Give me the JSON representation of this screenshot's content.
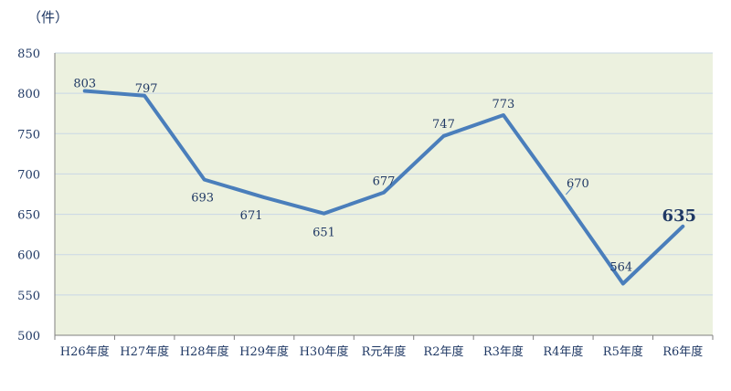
{
  "chart_data": {
    "type": "line",
    "unit_label": "（件）",
    "categories": [
      "H26年度",
      "H27年度",
      "H28年度",
      "H29年度",
      "H30年度",
      "R元年度",
      "R2年度",
      "R3年度",
      "R4年度",
      "R5年度",
      "R6年度"
    ],
    "series": [
      {
        "values": [
          803,
          797,
          693,
          671,
          651,
          677,
          747,
          773,
          670,
          564,
          635
        ]
      }
    ],
    "ylim": [
      500,
      850
    ],
    "yticks": [
      500,
      550,
      600,
      650,
      700,
      750,
      800,
      850
    ],
    "grid": true,
    "colors": {
      "line": "#4a7ebb",
      "plot_bg": "#ecf1df",
      "grid": "#c9d7e6",
      "text": "#1f3864",
      "axis": "#7f7f7f"
    }
  }
}
